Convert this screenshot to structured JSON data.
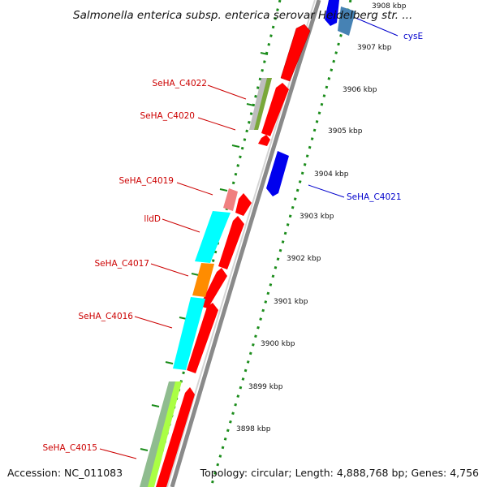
{
  "header": {
    "title": "Salmonella enterica subsp. enterica serovar Heidelberg str. ..."
  },
  "footer": {
    "accession": "Accession: NC_011083",
    "info": "Topology: circular; Length: 4,888,768 bp; Genes: 4,756"
  },
  "scale": {
    "ticks": [
      {
        "label": "3908 kbp"
      },
      {
        "label": "3907 kbp"
      },
      {
        "label": "3906 kbp"
      },
      {
        "label": "3905 kbp"
      },
      {
        "label": "3904 kbp"
      },
      {
        "label": "3903 kbp"
      },
      {
        "label": "3902 kbp"
      },
      {
        "label": "3901 kbp"
      },
      {
        "label": "3900 kbp"
      },
      {
        "label": "3899 kbp"
      },
      {
        "label": "3898 kbp"
      }
    ]
  },
  "genes": {
    "left": [
      {
        "label": "SeHA_C4022",
        "color": "#cc0000"
      },
      {
        "label": "SeHA_C4020",
        "color": "#cc0000"
      },
      {
        "label": "SeHA_C4019",
        "color": "#cc0000"
      },
      {
        "label": "lldD",
        "color": "#cc0000"
      },
      {
        "label": "SeHA_C4017",
        "color": "#cc0000"
      },
      {
        "label": "SeHA_C4016",
        "color": "#cc0000"
      },
      {
        "label": "SeHA_C4015",
        "color": "#cc0000"
      }
    ],
    "right": [
      {
        "label": "cysE",
        "color": "#0000cc"
      },
      {
        "label": "SeHA_C4021",
        "color": "#0000cc"
      }
    ]
  },
  "colors": {
    "forward_cds": "#ff0000",
    "reverse_cds": "#0000ee",
    "backbone": "#999999",
    "dotted_ring": "#1a8c1a",
    "cyan_feature": "#00ffff",
    "orange_feature": "#ff8c00",
    "green_feature": "#7aa83a",
    "lime_feature": "#aaff44",
    "gray_feature": "#b8b8b8",
    "pink_feature": "#f08080",
    "steelblue_feature": "#4682b4"
  }
}
